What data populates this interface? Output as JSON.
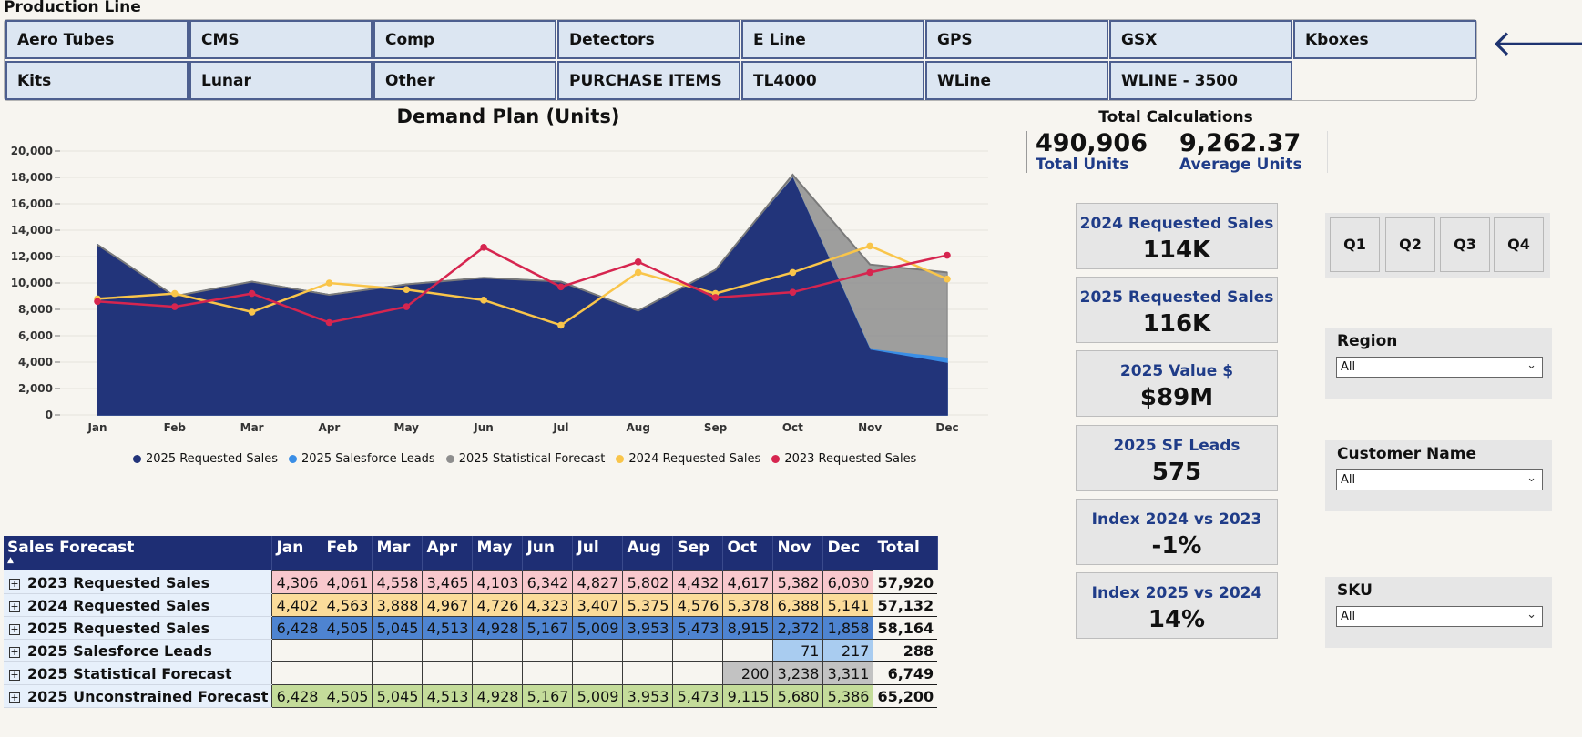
{
  "production_line": {
    "title": "Production Line",
    "items": [
      "Aero Tubes",
      "CMS",
      "Comp",
      "Detectors",
      "E Line",
      "GPS",
      "GSX",
      "Kboxes",
      "Kits",
      "Lunar",
      "Other",
      "PURCHASE ITEMS",
      "TL4000",
      "WLine",
      "WLINE - 3500"
    ]
  },
  "nav": {
    "back": "🡐",
    "forward": "🡒"
  },
  "chart_data": {
    "type": "area",
    "title": "Demand Plan (Units)",
    "categories": [
      "Jan",
      "Feb",
      "Mar",
      "Apr",
      "May",
      "Jun",
      "Jul",
      "Aug",
      "Sep",
      "Oct",
      "Nov",
      "Dec"
    ],
    "ylim": [
      0,
      20000
    ],
    "yticks": [
      "0",
      "2,000",
      "4,000",
      "6,000",
      "8,000",
      "10,000",
      "12,000",
      "14,000",
      "16,000",
      "18,000",
      "20,000"
    ],
    "grid": true,
    "legend_position": "bottom",
    "series": [
      {
        "name": "2025 Requested Sales",
        "style": "area",
        "color": "#22347a",
        "values": [
          12900,
          9000,
          10100,
          9100,
          9900,
          10400,
          10100,
          7900,
          11000,
          17900,
          4900,
          3900
        ]
      },
      {
        "name": "2025 Salesforce Leads",
        "style": "area",
        "color": "#3a8ee6",
        "values": [
          12900,
          9000,
          10100,
          9100,
          9900,
          10400,
          10100,
          7900,
          11000,
          17900,
          4950,
          4300
        ]
      },
      {
        "name": "2025 Statistical Forecast",
        "style": "area",
        "color": "#8e8e8e",
        "values": [
          12900,
          9000,
          10100,
          9100,
          9900,
          10400,
          10100,
          7900,
          11000,
          18200,
          11400,
          10800
        ]
      },
      {
        "name": "2024 Requested Sales",
        "style": "line",
        "color": "#f9c54a",
        "values": [
          8800,
          9200,
          7800,
          10000,
          9500,
          8700,
          6800,
          10800,
          9200,
          10800,
          12800,
          10300
        ]
      },
      {
        "name": "2023 Requested Sales",
        "style": "line",
        "color": "#d6254f",
        "values": [
          8600,
          8200,
          9200,
          7000,
          8200,
          12700,
          9700,
          11600,
          8900,
          9300,
          10800,
          12100
        ]
      }
    ]
  },
  "totals": {
    "title": "Total Calculations",
    "total_units": "490,906",
    "total_units_label": "Total Units",
    "average_units": "9,262.37",
    "average_units_label": "Average Units"
  },
  "cards": [
    {
      "label": "2024 Requested Sales",
      "value": "114K"
    },
    {
      "label": "2025 Requested Sales",
      "value": "116K"
    },
    {
      "label": "2025 Value $",
      "value": "$89M"
    },
    {
      "label": "2025 SF Leads",
      "value": "575"
    },
    {
      "label": "Index 2024 vs 2023",
      "value": "-1%"
    },
    {
      "label": "Index 2025 vs 2024",
      "value": "14%"
    }
  ],
  "quarters": [
    "Q1",
    "Q2",
    "Q3",
    "Q4"
  ],
  "filters": [
    {
      "label": "Region",
      "value": "All"
    },
    {
      "label": "Customer Name",
      "value": "All"
    },
    {
      "label": "SKU",
      "value": "All"
    }
  ],
  "table": {
    "header": "Sales Forecast",
    "columns": [
      "Jan",
      "Feb",
      "Mar",
      "Apr",
      "May",
      "Jun",
      "Jul",
      "Aug",
      "Sep",
      "Oct",
      "Nov",
      "Dec",
      "Total"
    ],
    "rows": [
      {
        "label": "2023 Requested Sales",
        "cls": "c23",
        "cells": [
          "4,306",
          "4,061",
          "4,558",
          "3,465",
          "4,103",
          "6,342",
          "4,827",
          "5,802",
          "4,432",
          "4,617",
          "5,382",
          "6,030"
        ],
        "total": "57,920"
      },
      {
        "label": "2024 Requested Sales",
        "cls": "c24",
        "cells": [
          "4,402",
          "4,563",
          "3,888",
          "4,967",
          "4,726",
          "4,323",
          "3,407",
          "5,375",
          "4,576",
          "5,378",
          "6,388",
          "5,141"
        ],
        "total": "57,132"
      },
      {
        "label": "2025 Requested Sales",
        "cls": "c25",
        "cells": [
          "6,428",
          "4,505",
          "5,045",
          "4,513",
          "4,928",
          "5,167",
          "5,009",
          "3,953",
          "5,473",
          "8,915",
          "2,372",
          "1,858"
        ],
        "total": "58,164"
      },
      {
        "label": "2025 Salesforce Leads",
        "cls": "cleads",
        "cells": [
          "",
          "",
          "",
          "",
          "",
          "",
          "",
          "",
          "",
          "",
          "71",
          "217"
        ],
        "total": "288"
      },
      {
        "label": "2025 Statistical Forecast",
        "cls": "cstat",
        "cells": [
          "",
          "",
          "",
          "",
          "",
          "",
          "",
          "",
          "",
          "200",
          "3,238",
          "3,311"
        ],
        "total": "6,749"
      },
      {
        "label": "2025 Unconstrained Forecast",
        "cls": "cunc",
        "cells": [
          "6,428",
          "4,505",
          "5,045",
          "4,513",
          "4,928",
          "5,167",
          "5,009",
          "3,953",
          "5,473",
          "9,115",
          "5,680",
          "5,386"
        ],
        "total": "65,200"
      }
    ]
  }
}
